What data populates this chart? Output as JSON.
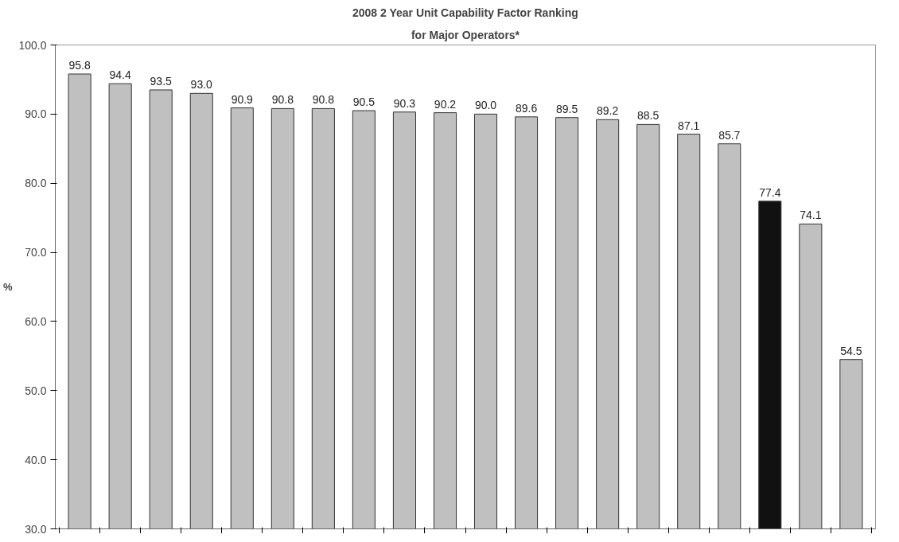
{
  "chart_data": {
    "type": "bar",
    "title": "2008 2 Year Unit Capability Factor Ranking",
    "subtitle": "for Major Operators*",
    "ylabel": "%",
    "categories": [
      null,
      null,
      null,
      null,
      null,
      null,
      null,
      null,
      null,
      null,
      null,
      null,
      null,
      null,
      null,
      null,
      null,
      null,
      null,
      null
    ],
    "values": [
      95.8,
      94.4,
      93.5,
      93.0,
      90.9,
      90.8,
      90.8,
      90.5,
      90.3,
      90.2,
      90.0,
      89.6,
      89.5,
      89.2,
      88.5,
      87.1,
      85.7,
      77.4,
      74.1,
      54.5
    ],
    "colors": [
      "#c0c0c0",
      "#c0c0c0",
      "#c0c0c0",
      "#c0c0c0",
      "#c0c0c0",
      "#c0c0c0",
      "#c0c0c0",
      "#c0c0c0",
      "#c0c0c0",
      "#c0c0c0",
      "#c0c0c0",
      "#c0c0c0",
      "#c0c0c0",
      "#c0c0c0",
      "#c0c0c0",
      "#c0c0c0",
      "#c0c0c0",
      "#111111",
      "#c0c0c0",
      "#c0c0c0"
    ],
    "ylim": [
      30,
      100
    ],
    "yticks": [
      {
        "value": 30,
        "label": "30.0"
      },
      {
        "value": 40,
        "label": "40.0"
      },
      {
        "value": 50,
        "label": "50.0"
      },
      {
        "value": 60,
        "label": "60.0"
      },
      {
        "value": 70,
        "label": "70.0"
      },
      {
        "value": 80,
        "label": "80.0"
      },
      {
        "value": 90,
        "label": "90.0"
      },
      {
        "value": 100,
        "label": "100.0"
      }
    ],
    "value_labels": [
      "95.8",
      "94.4",
      "93.5",
      "93.0",
      "90.9",
      "90.8",
      "90.8",
      "90.5",
      "90.3",
      "90.2",
      "90.0",
      "89.6",
      "89.5",
      "89.2",
      "88.5",
      "87.1",
      "85.7",
      "77.4",
      "74.1",
      "54.5"
    ],
    "grid": false,
    "tick_labels": "y"
  }
}
